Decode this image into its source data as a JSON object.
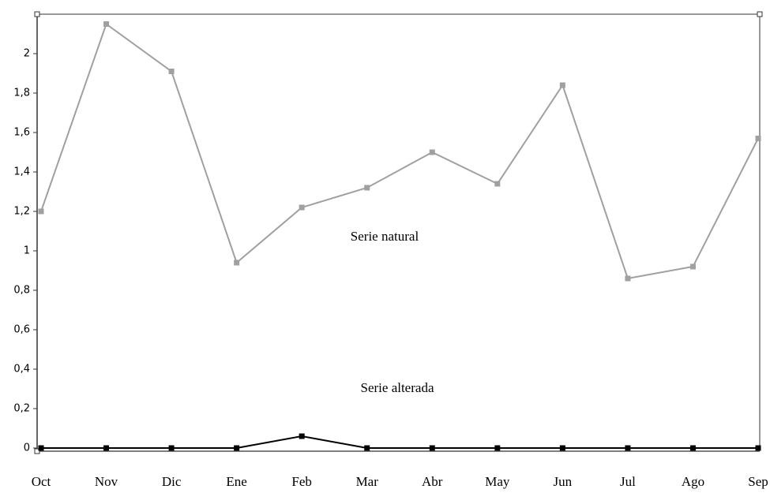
{
  "chart_data": {
    "type": "line",
    "categories": [
      "Oct",
      "Nov",
      "Dic",
      "Ene",
      "Feb",
      "Mar",
      "Abr",
      "May",
      "Jun",
      "Jul",
      "Ago",
      "Sep"
    ],
    "series": [
      {
        "name": "Serie natural",
        "color": "#a0a0a0",
        "values": [
          1.2,
          2.15,
          1.91,
          0.94,
          1.22,
          1.32,
          1.5,
          1.34,
          1.84,
          0.86,
          0.92,
          1.57
        ]
      },
      {
        "name": "Serie alterada",
        "color": "#000000",
        "values": [
          0,
          0,
          0,
          0,
          0.06,
          0,
          0,
          0,
          0,
          0,
          0,
          0
        ]
      }
    ],
    "ylim": [
      0,
      2.2
    ],
    "yticks": [
      0,
      {
        "value": 0.2,
        "label": "0,2"
      },
      {
        "value": 0.4,
        "label": "0,4"
      },
      {
        "value": 0.6,
        "label": "0,6"
      },
      {
        "value": 0.8,
        "label": "0,8"
      },
      1,
      {
        "value": 1.2,
        "label": "1,2"
      },
      {
        "value": 1.4,
        "label": "1,4"
      },
      {
        "value": 1.6,
        "label": "1,6"
      },
      {
        "value": 1.8,
        "label": "1,8"
      },
      2
    ],
    "grid": false
  }
}
